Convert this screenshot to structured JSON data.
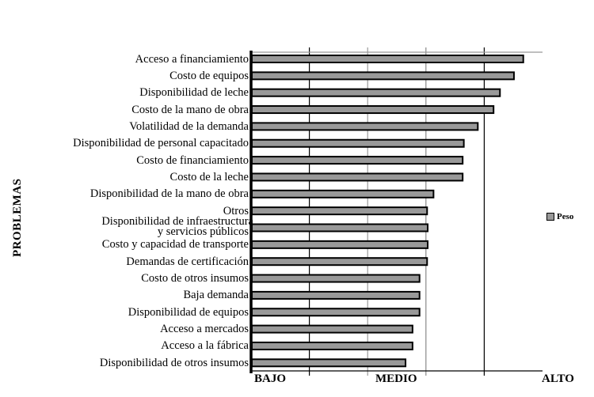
{
  "chart_data": {
    "type": "bar",
    "orientation": "horizontal",
    "title": "",
    "xlabel": "",
    "ylabel": "PROBLEMAS",
    "xlim": [
      0,
      5
    ],
    "x_tick_labels": [
      {
        "pos": 0,
        "label": "BAJO"
      },
      {
        "pos": 3,
        "label": "MEDIO"
      },
      {
        "pos": 5,
        "label": "ALTO"
      }
    ],
    "grid": "vertical",
    "legend_position": "right",
    "categories": [
      "Acceso a financiamiento",
      "Costo de equipos",
      "Disponibilidad de leche",
      "Costo de la mano de obra",
      "Volatilidad de la demanda",
      "Disponibilidad de personal capacitado",
      "Costo de financiamiento",
      "Costo de la leche",
      "Disponibilidad de la mano de obra",
      "Otros",
      "Disponibilidad de infraestructura y servicios públicos",
      "Costo y capacidad de transporte",
      "Demandas de certificación",
      "Costo de otros insumos",
      "Baja demanda",
      "Disponibilidad de equipos",
      "Acceso a mercados",
      "Acceso a la fábrica",
      "Disponibilidad de otros insumos"
    ],
    "series": [
      {
        "name": "Peso",
        "color": "#999999",
        "values": [
          4.67,
          4.51,
          4.27,
          4.16,
          3.89,
          3.65,
          3.63,
          3.63,
          3.13,
          3.02,
          3.03,
          3.03,
          3.02,
          2.89,
          2.89,
          2.89,
          2.77,
          2.77,
          2.65
        ]
      }
    ]
  },
  "labels": {
    "cats": [
      [
        "Acceso a financiamiento"
      ],
      [
        "Costo de equipos"
      ],
      [
        "Disponibilidad de leche"
      ],
      [
        "Costo de la mano de obra"
      ],
      [
        "Volatilidad de la demanda"
      ],
      [
        "Disponibilidad de personal capacitado"
      ],
      [
        "Costo de financiamiento"
      ],
      [
        "Costo de la leche"
      ],
      [
        "Disponibilidad de la mano de obra"
      ],
      [
        "Otros"
      ],
      [
        "Disponibilidad de infraestructura",
        "y servicios públicos"
      ],
      [
        "Costo y capacidad de transporte"
      ],
      [
        "Demandas de certificación"
      ],
      [
        "Costo de otros insumos"
      ],
      [
        "Baja demanda"
      ],
      [
        "Disponibilidad de equipos"
      ],
      [
        "Acceso a mercados"
      ],
      [
        "Acceso a la fábrica"
      ],
      [
        "Disponibilidad de otros insumos"
      ]
    ],
    "ylabel": "PROBLEMAS",
    "bajo": "BAJO",
    "medio": "MEDIO",
    "alto": "ALTO",
    "legend": "Peso"
  }
}
